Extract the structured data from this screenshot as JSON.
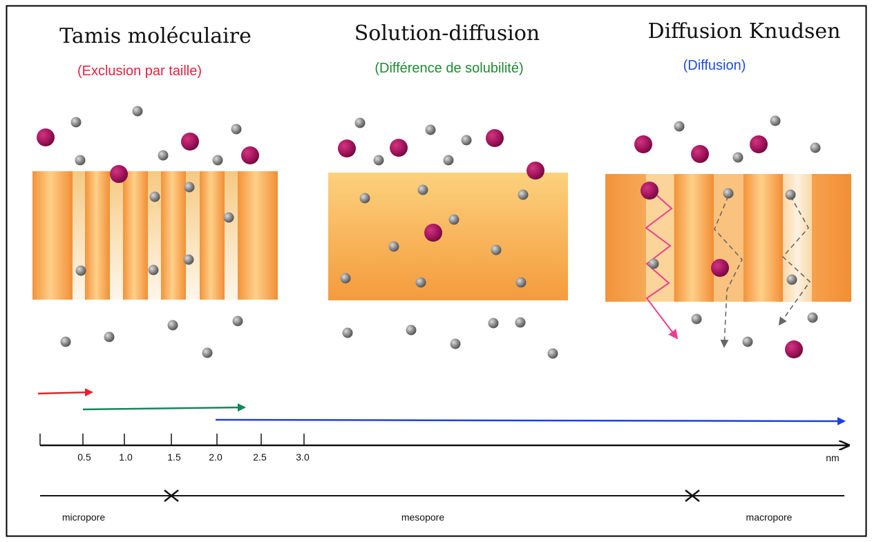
{
  "panels": [
    {
      "title": "Tamis moléculaire",
      "subtitle": "(Exclusion par taille)",
      "subtitle_color": "#e8213f"
    },
    {
      "title": "Solution-diffusion",
      "subtitle": "(Différence de solubilité)",
      "subtitle_color": "#1e8a32"
    },
    {
      "title": "Diffusion Knudsen",
      "subtitle": "(Diffusion)",
      "subtitle_color": "#1f4be0"
    }
  ],
  "scale": {
    "ticks": [
      "0.5",
      "1.0",
      "1.5",
      "2.0",
      "2.5",
      "3.0"
    ],
    "unit": "nm",
    "ranges": [
      {
        "mechanism": "Tamis moléculaire",
        "color": "#e8202a",
        "from": "0",
        "to": "0.5"
      },
      {
        "mechanism": "Solution-diffusion",
        "color": "#13875a",
        "from": "0.5",
        "to": "2.5"
      },
      {
        "mechanism": "Diffusion Knudsen",
        "color": "#1e3de6",
        "from": "2.0",
        "to": "nm"
      }
    ]
  },
  "pore_classes": [
    "micropore",
    "mesopore",
    "macropore"
  ],
  "colors": {
    "large_molecule": "#a3145e",
    "small_molecule": "#7a7a7a",
    "membrane": "#f5a94a",
    "knudsen_path_large": "#ee3d8f",
    "knudsen_path_small": "#666666"
  }
}
